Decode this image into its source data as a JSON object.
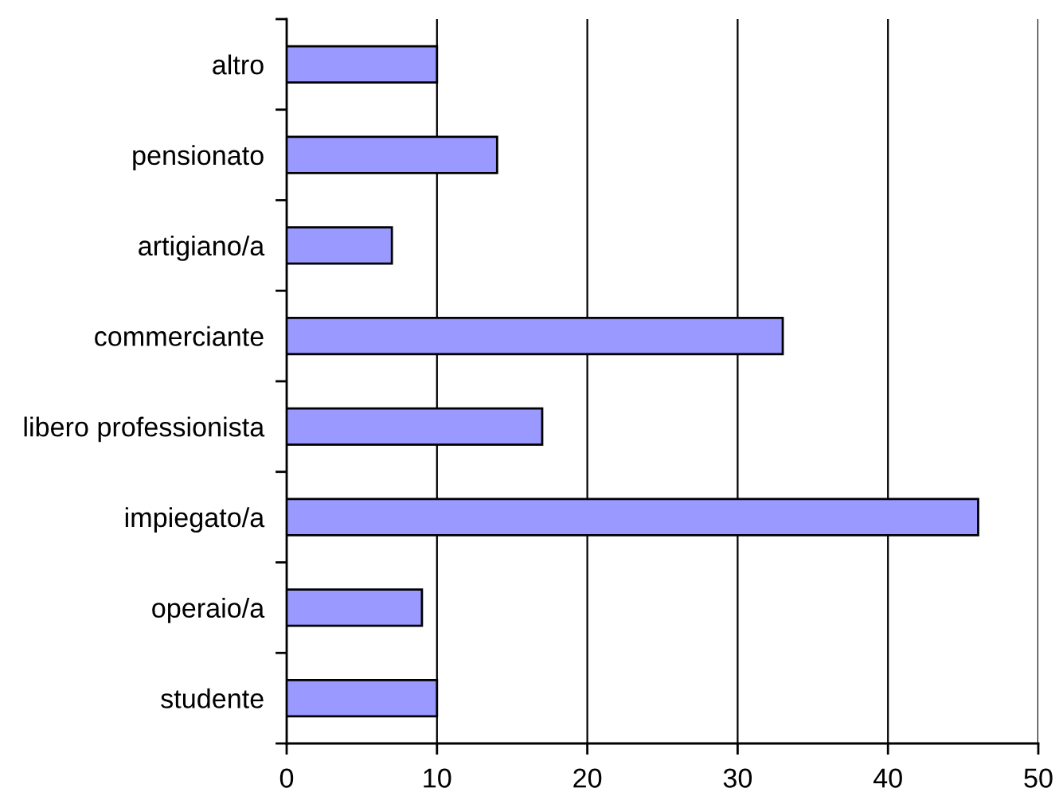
{
  "chart_data": {
    "type": "bar",
    "orientation": "horizontal",
    "categories": [
      "altro",
      "pensionato",
      "artigiano/a",
      "commerciante",
      "libero professionista",
      "impiegato/a",
      "operaio/a",
      "studente"
    ],
    "values": [
      10,
      14,
      7,
      33,
      17,
      46,
      9,
      10
    ],
    "color": "#9999ff",
    "xlim": [
      0,
      50
    ],
    "xticks": [
      0,
      10,
      20,
      30,
      40,
      50
    ],
    "grid": "x"
  }
}
